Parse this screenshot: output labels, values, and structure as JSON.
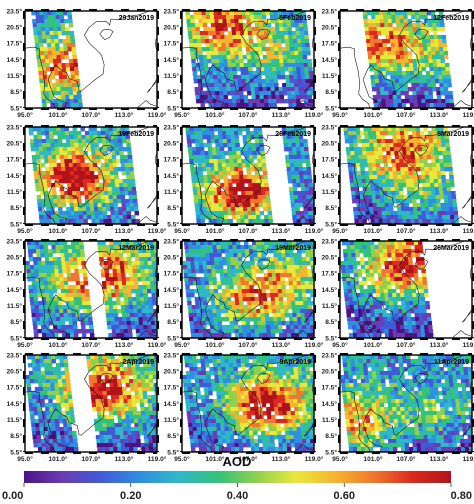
{
  "figure": {
    "panels": [
      {
        "date": "29Jan2019",
        "swaths": [
          [
            96.5,
            102.5
          ]
        ]
      },
      {
        "date": "5Feb2019",
        "swaths": [
          [
            96.0,
            116.5
          ]
        ]
      },
      {
        "date": "12Feb2019",
        "swaths": [
          [
            99.5,
            113.0
          ]
        ]
      },
      {
        "date": "19Feb2019",
        "swaths": [
          [
            96.0,
            113.0
          ]
        ]
      },
      {
        "date": "26Feb2019",
        "swaths": [
          [
            96.0,
            109.0
          ],
          [
            113.5,
            117.0
          ]
        ]
      },
      {
        "date": "5Mar2019",
        "swaths": [
          [
            96.0,
            113.5
          ]
        ]
      },
      {
        "date": "12Mar2019",
        "swaths": [
          [
            95.0,
            105.0
          ],
          [
            108.5,
            119.0
          ]
        ]
      },
      {
        "date": "19Mar2019",
        "swaths": [
          [
            95.0,
            119.0
          ]
        ]
      },
      {
        "date": "26Mar2019",
        "swaths": [
          [
            95.0,
            109.0
          ]
        ]
      },
      {
        "date": "2Apr2019",
        "swaths": [
          [
            95.0,
            102.0
          ],
          [
            106.5,
            119.0
          ]
        ]
      },
      {
        "date": "9Apr2019",
        "swaths": [
          [
            95.0,
            119.0
          ]
        ]
      },
      {
        "date": "11Apr2019",
        "swaths": [
          [
            95.0,
            119.0
          ]
        ]
      }
    ],
    "lon_ticks": [
      "95.0°",
      "101.0°",
      "107.0°",
      "113.0°",
      "119.0°"
    ],
    "lat_ticks": [
      "23.5°",
      "20.5°",
      "17.5°",
      "14.5°",
      "11.5°",
      "8.5°",
      "5.5°"
    ],
    "lon_range": [
      95.0,
      119.0
    ],
    "lat_range": [
      5.5,
      23.5
    ]
  },
  "colorbar": {
    "title": "AOD",
    "ticks": [
      "0.00",
      "0.20",
      "0.40",
      "0.60",
      "0.80"
    ],
    "range": [
      0.0,
      0.8
    ],
    "colors": [
      "#4a1486",
      "#6a3db3",
      "#3f5bd8",
      "#2f8fe0",
      "#2fb9c8",
      "#33c27a",
      "#8fd14f",
      "#e8e83a",
      "#f6b52e",
      "#f0782c",
      "#dc2a1e",
      "#b2131a"
    ]
  },
  "colors": {
    "land_outline": "#1a1a1a",
    "frame": "#000000"
  }
}
